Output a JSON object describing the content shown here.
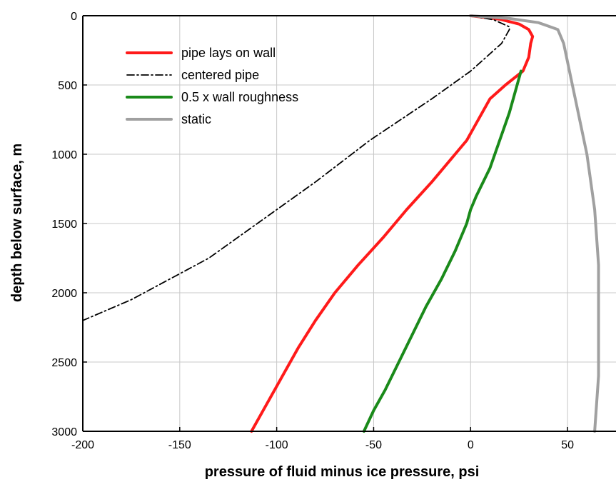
{
  "chart_data": {
    "type": "line",
    "title": "",
    "xlabel": "pressure of fluid minus ice pressure, psi",
    "ylabel": "depth below surface, m",
    "xlim": [
      -200,
      75
    ],
    "ylim": [
      0,
      3000
    ],
    "y_inverted": true,
    "x_ticks": [
      -200,
      -150,
      -100,
      -50,
      0,
      50
    ],
    "y_ticks": [
      0,
      500,
      1000,
      1500,
      2000,
      2500,
      3000
    ],
    "grid": true,
    "legend_position": "top-left",
    "series": [
      {
        "name": "pipe lays on wall",
        "color": "#ff1a1a",
        "style": "solid",
        "points": [
          [
            0,
            0
          ],
          [
            15,
            25
          ],
          [
            25,
            60
          ],
          [
            30,
            100
          ],
          [
            32,
            150
          ],
          [
            31,
            200
          ],
          [
            30,
            300
          ],
          [
            27,
            400
          ],
          [
            18,
            500
          ],
          [
            10,
            600
          ],
          [
            2,
            800
          ],
          [
            -2,
            900
          ],
          [
            -8,
            1000
          ],
          [
            -20,
            1200
          ],
          [
            -33,
            1400
          ],
          [
            -45,
            1600
          ],
          [
            -58,
            1800
          ],
          [
            -70,
            2000
          ],
          [
            -80,
            2200
          ],
          [
            -89,
            2400
          ],
          [
            -97,
            2600
          ],
          [
            -105,
            2800
          ],
          [
            -113,
            3000
          ]
        ]
      },
      {
        "name": "centered pipe",
        "color": "#000000",
        "style": "dashdot",
        "points": [
          [
            0,
            0
          ],
          [
            12,
            30
          ],
          [
            20,
            80
          ],
          [
            20,
            100
          ],
          [
            16,
            200
          ],
          [
            8,
            300
          ],
          [
            0,
            400
          ],
          [
            -20,
            600
          ],
          [
            -52,
            900
          ],
          [
            -80,
            1200
          ],
          [
            -110,
            1500
          ],
          [
            -135,
            1750
          ],
          [
            -155,
            1900
          ],
          [
            -175,
            2050
          ],
          [
            -200,
            2200
          ]
        ]
      },
      {
        "name": "0.5 x wall roughness",
        "color": "#1a8a1a",
        "style": "solid",
        "points": [
          [
            26,
            400
          ],
          [
            24,
            500
          ],
          [
            20,
            700
          ],
          [
            15,
            900
          ],
          [
            10,
            1100
          ],
          [
            3,
            1300
          ],
          [
            0,
            1400
          ],
          [
            -2,
            1500
          ],
          [
            -8,
            1700
          ],
          [
            -15,
            1900
          ],
          [
            -23,
            2100
          ],
          [
            -30,
            2300
          ],
          [
            -37,
            2500
          ],
          [
            -44,
            2700
          ],
          [
            -50,
            2850
          ],
          [
            -55,
            3000
          ]
        ]
      },
      {
        "name": "static",
        "color": "#a0a0a0",
        "style": "solid",
        "points": [
          [
            0,
            0
          ],
          [
            20,
            20
          ],
          [
            35,
            50
          ],
          [
            45,
            100
          ],
          [
            48,
            200
          ],
          [
            51,
            400
          ],
          [
            54,
            600
          ],
          [
            57,
            800
          ],
          [
            60,
            1000
          ],
          [
            62,
            1200
          ],
          [
            64,
            1400
          ],
          [
            65,
            1600
          ],
          [
            66,
            1800
          ],
          [
            66,
            2000
          ],
          [
            66,
            2200
          ],
          [
            66,
            2400
          ],
          [
            66,
            2600
          ],
          [
            65,
            2800
          ],
          [
            64,
            3000
          ]
        ]
      }
    ]
  }
}
